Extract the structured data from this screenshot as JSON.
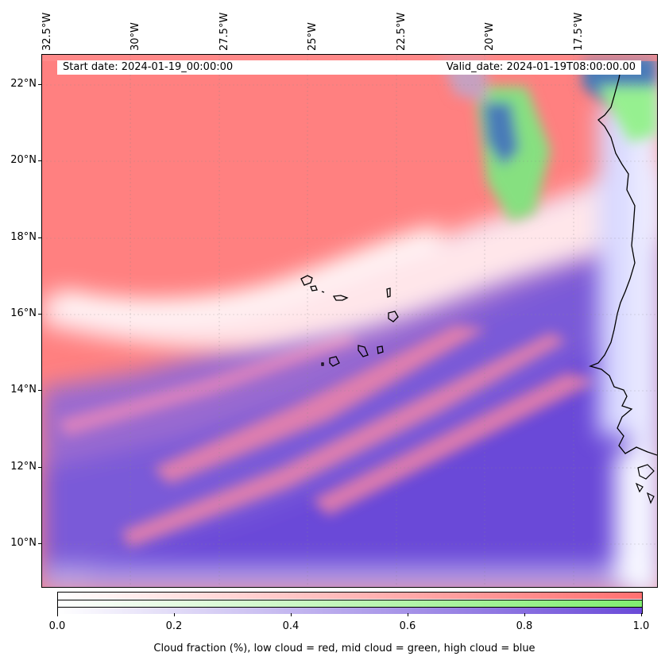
{
  "map": {
    "start_date": "Start date: 2024-01-19_00:00:00",
    "valid_date": "Valid_date: 2024-01-19T08:00:00.00",
    "lon_labels": [
      "32.5°W",
      "30°W",
      "27.5°W",
      "25°W",
      "22.5°W",
      "20°W",
      "17.5°W"
    ],
    "lat_labels": [
      "22°N",
      "20°N",
      "18°N",
      "16°N",
      "14°N",
      "12°N",
      "10°N"
    ],
    "region": "Cape Verde / West Africa coast",
    "colors": {
      "low_cloud": "#ff8080",
      "mid_cloud": "#80e880",
      "high_cloud": "#6a4ad8",
      "coast": "#000000"
    }
  },
  "colorbar": {
    "ticks": [
      "0.0",
      "0.2",
      "0.4",
      "0.6",
      "0.8",
      "1.0"
    ],
    "label": "Cloud fraction (%), low cloud = red, mid cloud = green, high cloud = blue"
  }
}
